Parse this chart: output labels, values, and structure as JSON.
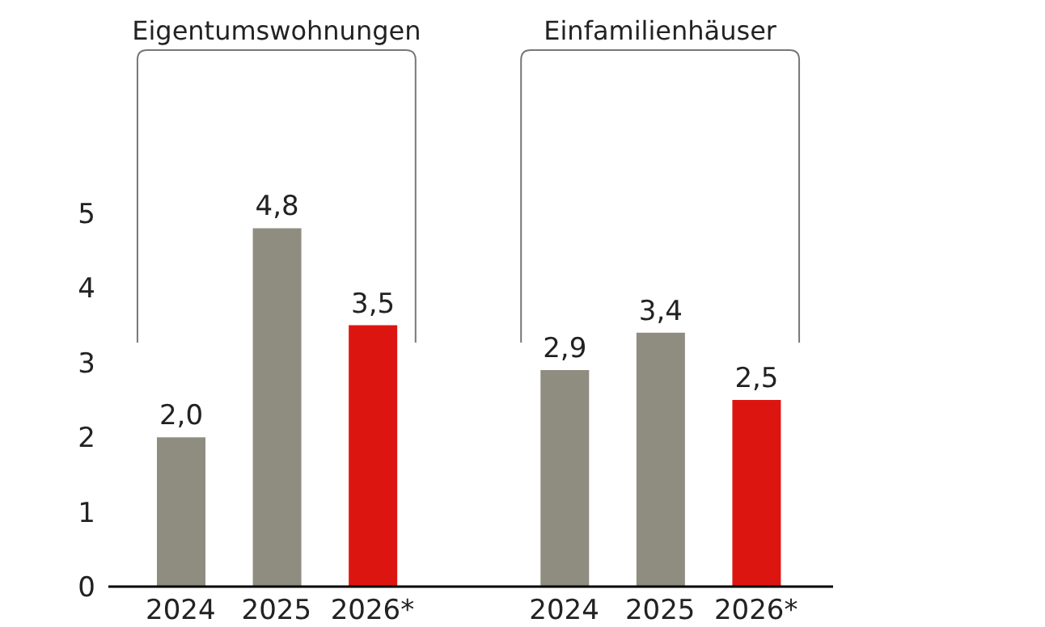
{
  "chart_data": {
    "type": "bar",
    "categories": [
      "2024",
      "2025",
      "2026*",
      null,
      "2024",
      "2025",
      "2026*"
    ],
    "values": [
      2.0,
      4.8,
      3.5,
      null,
      2.9,
      3.4,
      2.5
    ],
    "colors": [
      "#8f8d80",
      "#8f8d80",
      "#dd1511",
      "#8f8d80",
      "#8f8d80",
      "#8f8d80",
      "#dd1511"
    ],
    "value_labels": [
      "2,0",
      "4,8",
      "3,5",
      null,
      "2,9",
      "3,4",
      "2,5"
    ],
    "ylim": [
      0,
      5
    ],
    "yticks": [
      0,
      1,
      2,
      3,
      4,
      5
    ],
    "grid": false,
    "legend": false,
    "annotations": [
      "Eigentumswohnungen",
      "Einfamilienhäuser"
    ]
  }
}
